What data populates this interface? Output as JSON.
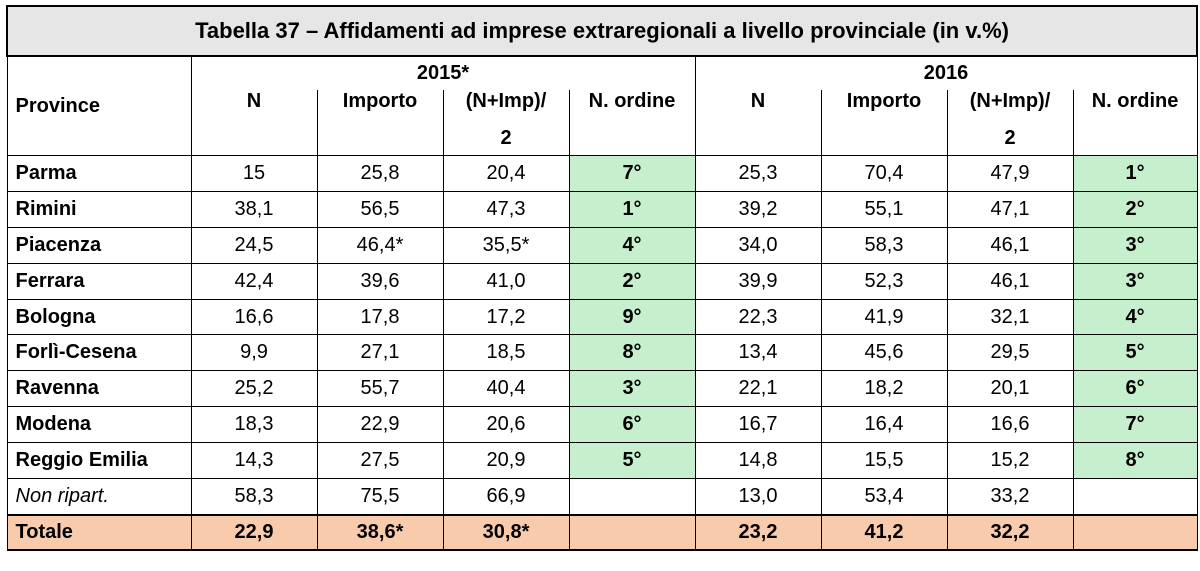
{
  "title": "Tabella 37 – Affidamenti ad imprese extraregionali a livello provinciale (in v.%)",
  "header": {
    "province_label": "Province",
    "year1": "2015*",
    "year2": "2016",
    "col_n": "N",
    "col_importo": "Importo",
    "col_avg_top": "(N+Imp)/",
    "col_avg_bottom": "2",
    "col_ordine": "N. ordine"
  },
  "rows": [
    {
      "name": "Parma",
      "n15": "15",
      "imp15": "25,8",
      "avg15": "20,4",
      "ord15": "7°",
      "n16": "25,3",
      "imp16": "70,4",
      "avg16": "47,9",
      "ord16": "1°"
    },
    {
      "name": "Rimini",
      "n15": "38,1",
      "imp15": "56,5",
      "avg15": "47,3",
      "ord15": "1°",
      "n16": "39,2",
      "imp16": "55,1",
      "avg16": "47,1",
      "ord16": "2°"
    },
    {
      "name": "Piacenza",
      "n15": "24,5",
      "imp15": "46,4*",
      "avg15": "35,5*",
      "ord15": "4°",
      "n16": "34,0",
      "imp16": "58,3",
      "avg16": "46,1",
      "ord16": "3°"
    },
    {
      "name": "Ferrara",
      "n15": "42,4",
      "imp15": "39,6",
      "avg15": "41,0",
      "ord15": "2°",
      "n16": "39,9",
      "imp16": "52,3",
      "avg16": "46,1",
      "ord16": "3°"
    },
    {
      "name": "Bologna",
      "n15": "16,6",
      "imp15": "17,8",
      "avg15": "17,2",
      "ord15": "9°",
      "n16": "22,3",
      "imp16": "41,9",
      "avg16": "32,1",
      "ord16": "4°"
    },
    {
      "name": "Forlì-Cesena",
      "n15": "9,9",
      "imp15": "27,1",
      "avg15": "18,5",
      "ord15": "8°",
      "n16": "13,4",
      "imp16": "45,6",
      "avg16": "29,5",
      "ord16": "5°"
    },
    {
      "name": "Ravenna",
      "n15": "25,2",
      "imp15": "55,7",
      "avg15": "40,4",
      "ord15": "3°",
      "n16": "22,1",
      "imp16": "18,2",
      "avg16": "20,1",
      "ord16": "6°"
    },
    {
      "name": "Modena",
      "n15": "18,3",
      "imp15": "22,9",
      "avg15": "20,6",
      "ord15": "6°",
      "n16": "16,7",
      "imp16": "16,4",
      "avg16": "16,6",
      "ord16": "7°"
    },
    {
      "name": "Reggio Emilia",
      "n15": "14,3",
      "imp15": "27,5",
      "avg15": "20,9",
      "ord15": "5°",
      "n16": "14,8",
      "imp16": "15,5",
      "avg16": "15,2",
      "ord16": "8°"
    },
    {
      "name": "Non ripart.",
      "n15": "58,3",
      "imp15": "75,5",
      "avg15": "66,9",
      "ord15": "",
      "n16": "13,0",
      "imp16": "53,4",
      "avg16": "33,2",
      "ord16": ""
    }
  ],
  "total": {
    "name": "Totale",
    "n15": "22,9",
    "imp15": "38,6*",
    "avg15": "30,8*",
    "ord15": "",
    "n16": "23,2",
    "imp16": "41,2",
    "avg16": "32,2",
    "ord16": ""
  },
  "colors": {
    "rank_bg": "#c6efce",
    "total_bg": "#f8cbad",
    "title_bg": "#e7e6e6"
  }
}
